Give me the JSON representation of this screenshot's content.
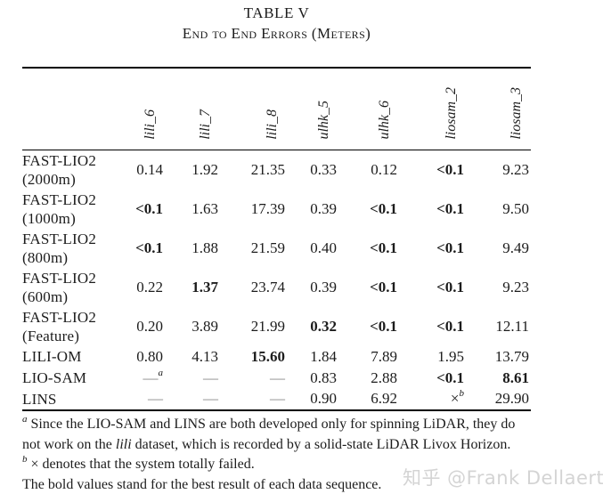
{
  "page": {
    "title": "TABLE V",
    "subtitle": "End to End Errors (Meters)",
    "watermark": "知乎 @Frank Dellaert"
  },
  "colors": {
    "text": "#1c1c1c",
    "rule": "#000000",
    "dash": "#8a8a8a",
    "watermark": "#d4d4d4",
    "background": "#ffffff"
  },
  "table": {
    "column_headers": [
      "lili_6",
      "lili_7",
      "lili_8",
      "ulhk_5",
      "ulhk_6",
      "liosam_2",
      "liosam_3"
    ],
    "rows": [
      {
        "label_lines": [
          "FAST-LIO2",
          "(2000m)"
        ],
        "cells": [
          {
            "v": "0.14"
          },
          {
            "v": "1.92"
          },
          {
            "v": "21.35"
          },
          {
            "v": "0.33"
          },
          {
            "v": "0.12"
          },
          {
            "v": "<0.1",
            "bold": true
          },
          {
            "v": "9.23"
          }
        ]
      },
      {
        "label_lines": [
          "FAST-LIO2",
          "(1000m)"
        ],
        "cells": [
          {
            "v": "<0.1",
            "bold": true
          },
          {
            "v": "1.63"
          },
          {
            "v": "17.39"
          },
          {
            "v": "0.39"
          },
          {
            "v": "<0.1",
            "bold": true
          },
          {
            "v": "<0.1",
            "bold": true
          },
          {
            "v": "9.50"
          }
        ]
      },
      {
        "label_lines": [
          "FAST-LIO2",
          "(800m)"
        ],
        "cells": [
          {
            "v": "<0.1",
            "bold": true
          },
          {
            "v": "1.88"
          },
          {
            "v": "21.59"
          },
          {
            "v": "0.40"
          },
          {
            "v": "<0.1",
            "bold": true
          },
          {
            "v": "<0.1",
            "bold": true
          },
          {
            "v": "9.49"
          }
        ]
      },
      {
        "label_lines": [
          "FAST-LIO2",
          "(600m)"
        ],
        "cells": [
          {
            "v": "0.22"
          },
          {
            "v": "1.37",
            "bold": true
          },
          {
            "v": "23.74"
          },
          {
            "v": "0.39"
          },
          {
            "v": "<0.1",
            "bold": true
          },
          {
            "v": "<0.1",
            "bold": true
          },
          {
            "v": "9.23"
          }
        ]
      },
      {
        "label_lines": [
          "FAST-LIO2",
          "(Feature)"
        ],
        "cells": [
          {
            "v": "0.20"
          },
          {
            "v": "3.89"
          },
          {
            "v": "21.99"
          },
          {
            "v": "0.32",
            "bold": true
          },
          {
            "v": "<0.1",
            "bold": true
          },
          {
            "v": "<0.1",
            "bold": true
          },
          {
            "v": "12.11"
          }
        ]
      },
      {
        "label_lines": [
          "LILI-OM"
        ],
        "cells": [
          {
            "v": "0.80"
          },
          {
            "v": "4.13"
          },
          {
            "v": "15.60",
            "bold": true
          },
          {
            "v": "1.84"
          },
          {
            "v": "7.89"
          },
          {
            "v": "1.95"
          },
          {
            "v": "13.79"
          }
        ]
      },
      {
        "label_lines": [
          "LIO-SAM"
        ],
        "cells": [
          {
            "v": "—",
            "dash": true,
            "sup": "a"
          },
          {
            "v": "—",
            "dash": true
          },
          {
            "v": "—",
            "dash": true
          },
          {
            "v": "0.83"
          },
          {
            "v": "2.88"
          },
          {
            "v": "<0.1",
            "bold": true
          },
          {
            "v": "8.61",
            "bold": true
          }
        ]
      },
      {
        "label_lines": [
          "LINS"
        ],
        "cells": [
          {
            "v": "—",
            "dash": true
          },
          {
            "v": "—",
            "dash": true
          },
          {
            "v": "—",
            "dash": true
          },
          {
            "v": "0.90"
          },
          {
            "v": "6.92"
          },
          {
            "v": "×",
            "sup": "b"
          },
          {
            "v": "29.90"
          }
        ]
      }
    ]
  },
  "footnotes": [
    {
      "sup": "a",
      "segments": [
        {
          "t": "Since the LIO-SAM and LINS are both developed only for spinning LiDAR, they do"
        },
        {
          "br": true
        },
        {
          "t": "not work on the "
        },
        {
          "t": "lili",
          "italic": true
        },
        {
          "t": " dataset, which is recorded by a solid-state LiDAR Livox Horizon."
        }
      ]
    },
    {
      "sup": "b",
      "segments": [
        {
          "t": "× denotes that the system totally failed."
        }
      ]
    },
    {
      "segments": [
        {
          "t": "The bold values stand for the best result of each data sequence."
        }
      ]
    }
  ]
}
